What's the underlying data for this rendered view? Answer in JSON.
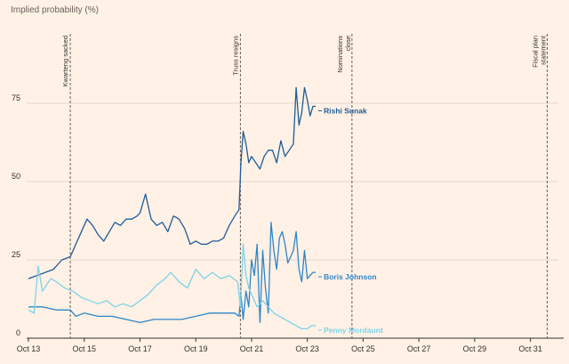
{
  "chart_data": {
    "type": "line",
    "title": "Implied probability (%)",
    "xlabel": "",
    "ylabel": "Implied probability (%)",
    "ylim": [
      0,
      100
    ],
    "xlim": [
      13,
      32
    ],
    "yticks": [
      0,
      25,
      50,
      75
    ],
    "xticks": [
      {
        "day": 13,
        "label": "Oct 13"
      },
      {
        "day": 15,
        "label": "Oct 15"
      },
      {
        "day": 17,
        "label": "Oct 17"
      },
      {
        "day": 19,
        "label": "Oct 19"
      },
      {
        "day": 21,
        "label": "Oct 21"
      },
      {
        "day": 23,
        "label": "Oct 23"
      },
      {
        "day": 25,
        "label": "Oct 25"
      },
      {
        "day": 27,
        "label": "Oct 27"
      },
      {
        "day": 29,
        "label": "Oct 29"
      },
      {
        "day": 31,
        "label": "Oct 31"
      }
    ],
    "events": [
      {
        "day": 14.5,
        "label": "Kwarteng sacked",
        "line2": ""
      },
      {
        "day": 20.6,
        "label": "Truss resigns",
        "line2": ""
      },
      {
        "day": 24.6,
        "label": "Nominations",
        "line2": "close"
      },
      {
        "day": 31.6,
        "label": "Fiscal plan",
        "line2": "statement"
      }
    ],
    "series": [
      {
        "name": "Rishi Sunak",
        "color": "#1f5c99",
        "x": [
          13.0,
          13.3,
          13.6,
          13.9,
          14.2,
          14.5,
          14.7,
          14.9,
          15.1,
          15.3,
          15.5,
          15.7,
          15.9,
          16.1,
          16.3,
          16.5,
          16.7,
          16.9,
          17.0,
          17.2,
          17.4,
          17.6,
          17.8,
          18.0,
          18.2,
          18.4,
          18.6,
          18.8,
          19.0,
          19.2,
          19.4,
          19.6,
          19.8,
          20.0,
          20.2,
          20.4,
          20.55,
          20.62,
          20.7,
          20.8,
          20.9,
          21.0,
          21.15,
          21.3,
          21.45,
          21.6,
          21.75,
          21.9,
          22.05,
          22.2,
          22.35,
          22.5,
          22.6,
          22.7,
          22.8,
          22.9,
          23.0,
          23.1,
          23.2,
          23.3
        ],
        "values": [
          19,
          20,
          21,
          22,
          25,
          26,
          30,
          34,
          38,
          36,
          33,
          31,
          34,
          37,
          36,
          38,
          38,
          39,
          40,
          46,
          38,
          36,
          37,
          34,
          39,
          38,
          35,
          30,
          31,
          30,
          30,
          31,
          31,
          32,
          36,
          39,
          41,
          56,
          66,
          62,
          56,
          58,
          56,
          54,
          58,
          60,
          60,
          56,
          63,
          58,
          60,
          62,
          80,
          68,
          72,
          80,
          76,
          71,
          74,
          74
        ]
      },
      {
        "name": "Boris Johnson",
        "color": "#2e86c8",
        "x": [
          13.0,
          13.5,
          14.0,
          14.5,
          14.7,
          15.0,
          15.5,
          16.0,
          16.5,
          17.0,
          17.5,
          18.0,
          18.5,
          19.0,
          19.5,
          20.0,
          20.4,
          20.55,
          20.62,
          20.7,
          20.8,
          20.9,
          21.0,
          21.1,
          21.2,
          21.3,
          21.4,
          21.5,
          21.6,
          21.7,
          21.8,
          21.9,
          22.0,
          22.1,
          22.2,
          22.3,
          22.4,
          22.5,
          22.6,
          22.7,
          22.8,
          22.9,
          23.0,
          23.1,
          23.2,
          23.3
        ],
        "values": [
          10,
          10,
          9,
          9,
          7,
          8,
          7,
          7,
          6,
          5,
          6,
          6,
          6,
          7,
          8,
          8,
          8,
          7,
          14,
          6,
          15,
          10,
          25,
          20,
          30,
          5,
          28,
          16,
          8,
          37,
          28,
          22,
          32,
          34,
          30,
          24,
          26,
          28,
          34,
          22,
          18,
          28,
          19,
          20,
          21,
          21
        ]
      },
      {
        "name": "Penny Mordaunt",
        "color": "#7dd3e8",
        "x": [
          13.0,
          13.2,
          13.35,
          13.5,
          13.8,
          14.0,
          14.3,
          14.6,
          14.9,
          15.2,
          15.5,
          15.8,
          16.1,
          16.4,
          16.7,
          17.0,
          17.3,
          17.6,
          17.9,
          18.1,
          18.4,
          18.7,
          19.0,
          19.3,
          19.6,
          19.9,
          20.2,
          20.5,
          20.6,
          20.7,
          20.8,
          20.9,
          21.0,
          21.2,
          21.4,
          21.6,
          21.8,
          22.0,
          22.2,
          22.4,
          22.6,
          22.8,
          23.0,
          23.15,
          23.3
        ],
        "values": [
          9,
          8,
          23,
          15,
          19,
          18,
          16,
          15,
          13,
          12,
          11,
          12,
          10,
          11,
          10,
          12,
          14,
          17,
          19,
          21,
          18,
          16,
          22,
          19,
          21,
          19,
          20,
          18,
          10,
          30,
          20,
          16,
          14,
          10,
          12,
          10,
          8,
          7,
          6,
          5,
          4,
          3,
          3,
          4,
          4
        ]
      }
    ]
  }
}
